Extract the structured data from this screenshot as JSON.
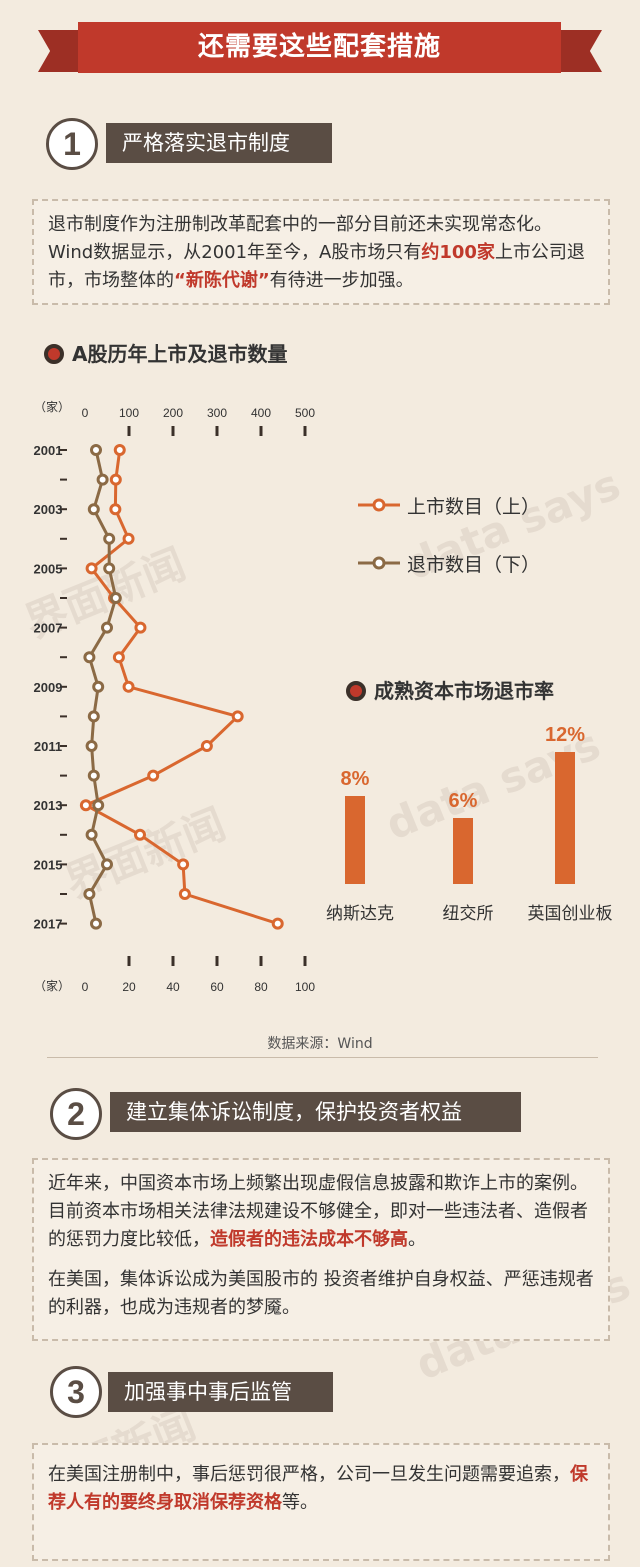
{
  "header": {
    "title": "还需要这些配套措施"
  },
  "sections": [
    {
      "number": "1",
      "title": "严格落实退市制度"
    },
    {
      "number": "2",
      "title": "建立集体诉讼制度，保护投资者权益"
    },
    {
      "number": "3",
      "title": "加强事中事后监管"
    }
  ],
  "section1": {
    "text_a": "退市制度作为注册制改革配套中的一部分目前还未实现常态化。Wind数据显示，从2001年至今，A股市场只有",
    "hl_a": "约100家",
    "text_b": "上市公司退市，市场整体的",
    "hl_b": "“新陈代谢”",
    "text_c": "有待进一步加强。"
  },
  "section2": {
    "p1_a": "近年来，中国资本市场上频繁出现虚假信息披露和欺诈上市的案例。目前资本市场相关法律法规建设不够健全，即对一些违法者、造假者的惩罚力度比较低，",
    "p1_hl": "造假者的违法成本不够高",
    "p1_b": "。",
    "p2": "在美国，集体诉讼成为美国股市的 投资者维护自身权益、严惩违规者的利器，也成为违规者的梦魇。"
  },
  "section3": {
    "text_a": "在美国注册制中，事后惩罚很严格，公司一旦发生问题需要追索，",
    "hl": "保荐人有的要终身取消保荐资格",
    "text_b": "等。"
  },
  "chart_titles": {
    "line": "A股历年上市及退市数量",
    "bar": "成熟资本市场退市率"
  },
  "source": "数据来源：Wind",
  "watermarks": {
    "cn": "界面新闻",
    "en": "data says"
  },
  "colors": {
    "listing": "#d9672f",
    "delisting": "#8b6a45",
    "accent": "#c0392b",
    "label_bg": "#5a4d44"
  },
  "chart_data": [
    {
      "type": "line",
      "orientation": "vertical-time",
      "year_labels": [
        "2001",
        "2003",
        "2005",
        "2007",
        "2009",
        "2011",
        "2013",
        "2015",
        "2017"
      ],
      "top_axis": {
        "unit": "（家）",
        "ticks": [
          0,
          100,
          200,
          300,
          400,
          500
        ],
        "range": [
          0,
          500
        ]
      },
      "bottom_axis": {
        "unit": "（家）",
        "ticks": [
          0,
          20,
          40,
          60,
          80,
          100
        ],
        "range": [
          0,
          100
        ]
      },
      "series": [
        {
          "name": "上市数目（上）",
          "axis": "top",
          "x": [
            2001,
            2002,
            2003,
            2004,
            2005,
            2006,
            2007,
            2008,
            2009,
            2010,
            2011,
            2012,
            2013,
            2014,
            2015,
            2016,
            2017
          ],
          "values": [
            79,
            70,
            69,
            99,
            15,
            66,
            126,
            77,
            99,
            347,
            277,
            155,
            2,
            125,
            223,
            227,
            438
          ]
        },
        {
          "name": "退市数目（下）",
          "axis": "bottom",
          "x": [
            2001,
            2002,
            2003,
            2004,
            2005,
            2006,
            2007,
            2008,
            2009,
            2010,
            2011,
            2012,
            2013,
            2014,
            2015,
            2016,
            2017
          ],
          "values": [
            5,
            8,
            4,
            11,
            11,
            14,
            10,
            2,
            6,
            4,
            3,
            4,
            6,
            3,
            10,
            2,
            5
          ]
        }
      ]
    },
    {
      "type": "bar",
      "categories": [
        "纳斯达克",
        "纽交所",
        "英国创业板"
      ],
      "values": [
        8,
        6,
        12
      ],
      "value_labels": [
        "8%",
        "6%",
        "12%"
      ]
    }
  ]
}
